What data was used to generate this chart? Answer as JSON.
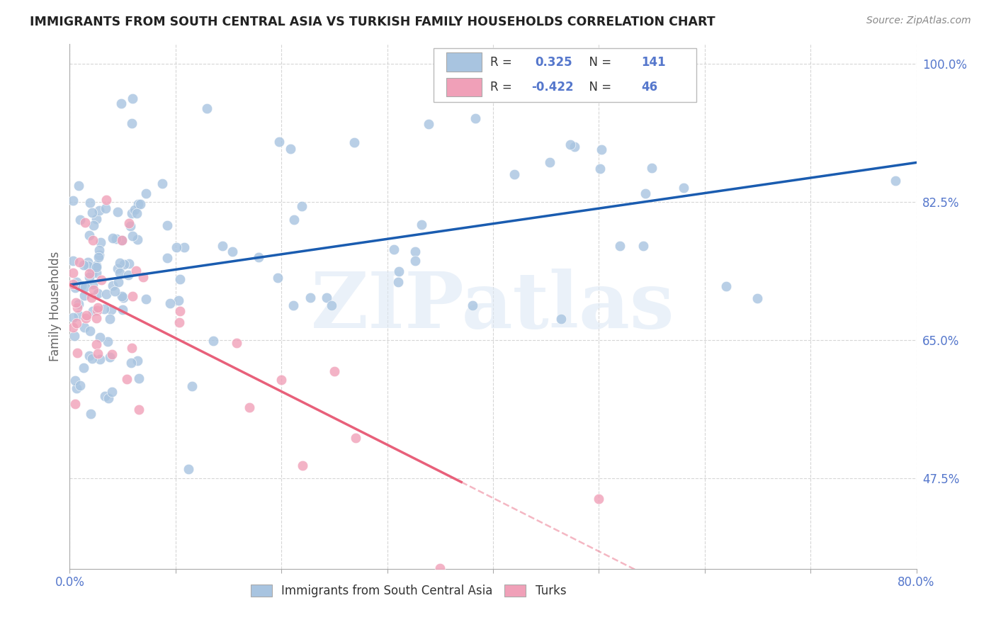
{
  "title": "IMMIGRANTS FROM SOUTH CENTRAL ASIA VS TURKISH FAMILY HOUSEHOLDS CORRELATION CHART",
  "source": "Source: ZipAtlas.com",
  "ylabel": "Family Households",
  "x_min": 0.0,
  "x_max": 0.8,
  "y_min": 0.36,
  "y_max": 1.025,
  "x_ticks": [
    0.0,
    0.1,
    0.2,
    0.3,
    0.4,
    0.5,
    0.6,
    0.7,
    0.8
  ],
  "x_tick_labels": [
    "0.0%",
    "",
    "",
    "",
    "",
    "",
    "",
    "",
    "80.0%"
  ],
  "y_tick_labels": [
    "100.0%",
    "82.5%",
    "65.0%",
    "47.5%"
  ],
  "y_ticks": [
    1.0,
    0.825,
    0.65,
    0.475
  ],
  "blue_r": 0.325,
  "blue_n": 141,
  "pink_r": -0.422,
  "pink_n": 46,
  "blue_color": "#a8c4e0",
  "pink_color": "#f0a0b8",
  "blue_line_color": "#1a5cb0",
  "pink_line_color": "#e8607a",
  "watermark": "ZIPatlas",
  "background_color": "#ffffff",
  "grid_color": "#cccccc",
  "title_color": "#222222",
  "axis_color": "#5577cc",
  "legend_text_color": "#333333"
}
